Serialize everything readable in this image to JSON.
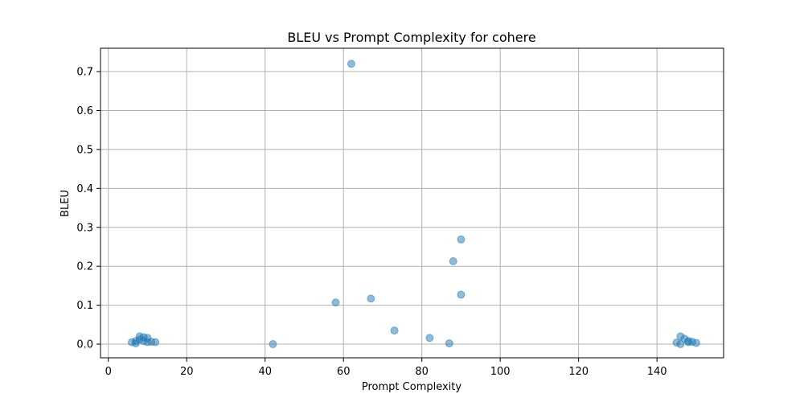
{
  "chart_data": {
    "type": "scatter",
    "title": "BLEU vs Prompt Complexity for cohere",
    "xlabel": "Prompt Complexity",
    "ylabel": "BLEU",
    "xlim": [
      -2,
      157
    ],
    "ylim": [
      -0.035,
      0.76
    ],
    "xticks": [
      0,
      20,
      40,
      60,
      80,
      100,
      120,
      140
    ],
    "yticks": [
      0.0,
      0.1,
      0.2,
      0.3,
      0.4,
      0.5,
      0.6,
      0.7
    ],
    "xtick_labels": [
      "0",
      "20",
      "40",
      "60",
      "80",
      "100",
      "120",
      "140"
    ],
    "ytick_labels": [
      "0.0",
      "0.1",
      "0.2",
      "0.3",
      "0.4",
      "0.5",
      "0.6",
      "0.7"
    ],
    "grid": true,
    "point_color": "#1f77b4",
    "point_opacity": 0.5,
    "points": [
      {
        "x": 6,
        "y": 0.005
      },
      {
        "x": 7,
        "y": 0.002
      },
      {
        "x": 7,
        "y": 0.008
      },
      {
        "x": 8,
        "y": 0.012
      },
      {
        "x": 8,
        "y": 0.02
      },
      {
        "x": 9,
        "y": 0.008
      },
      {
        "x": 9,
        "y": 0.018
      },
      {
        "x": 10,
        "y": 0.005
      },
      {
        "x": 10,
        "y": 0.016
      },
      {
        "x": 11,
        "y": 0.006
      },
      {
        "x": 12,
        "y": 0.005
      },
      {
        "x": 42,
        "y": 0.0
      },
      {
        "x": 58,
        "y": 0.107
      },
      {
        "x": 62,
        "y": 0.72
      },
      {
        "x": 67,
        "y": 0.117
      },
      {
        "x": 73,
        "y": 0.035
      },
      {
        "x": 82,
        "y": 0.016
      },
      {
        "x": 87,
        "y": 0.002
      },
      {
        "x": 88,
        "y": 0.213
      },
      {
        "x": 90,
        "y": 0.127
      },
      {
        "x": 90,
        "y": 0.269
      },
      {
        "x": 145,
        "y": 0.004
      },
      {
        "x": 146,
        "y": 0.0
      },
      {
        "x": 146,
        "y": 0.02
      },
      {
        "x": 147,
        "y": 0.014
      },
      {
        "x": 148,
        "y": 0.008
      },
      {
        "x": 148,
        "y": 0.005
      },
      {
        "x": 149,
        "y": 0.006
      },
      {
        "x": 150,
        "y": 0.003
      }
    ]
  }
}
